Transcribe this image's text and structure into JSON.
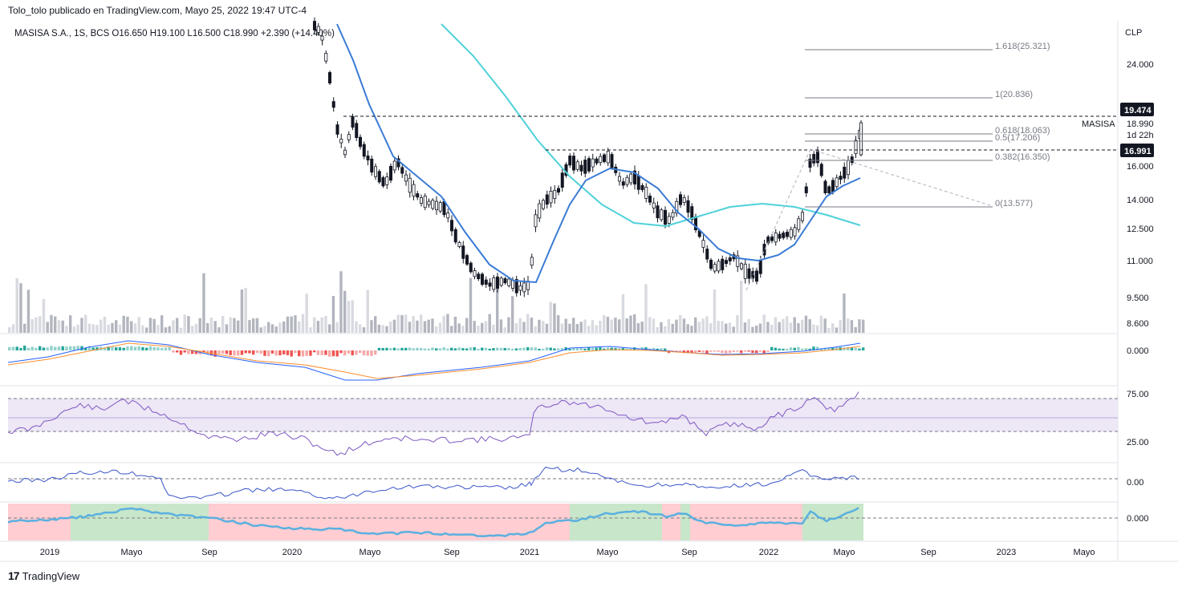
{
  "header": {
    "published": "Tolo_tolo publicado en TradingView.com, Mayo 25, 2022 19:47 UTC-4"
  },
  "symbol": {
    "line": "MASISA S.A., 1S, BCS  O16.650  H19.100  L16.500  C18.990  +2.390 (+14.40%)",
    "name_label": "MASISA",
    "currency": "CLP"
  },
  "price_axis": {
    "ticks": [
      "24.000",
      "16.000",
      "14.000",
      "12.500",
      "11.000",
      "9.500",
      "8.600"
    ],
    "badges": [
      {
        "value": "19.474",
        "color": "#131722"
      },
      {
        "value": "16.991",
        "color": "#131722"
      }
    ],
    "current": {
      "value": "18.990",
      "countdown": "1d 22h"
    }
  },
  "fib_levels": [
    {
      "label": "1.618(25.321)"
    },
    {
      "label": "1(20.836)"
    },
    {
      "label": "0.618(18.063)"
    },
    {
      "label": "0.5(17.206)"
    },
    {
      "label": "0.382(16.350)"
    },
    {
      "label": "0(13.577)"
    }
  ],
  "macd_axis": {
    "ticks": [
      "0.000"
    ]
  },
  "rsi_axis": {
    "ticks": [
      "75.00",
      "25.00"
    ]
  },
  "osc_axis": {
    "ticks": [
      "0.00"
    ]
  },
  "trend_axis": {
    "ticks": [
      "0.000"
    ]
  },
  "time_axis": {
    "ticks": [
      "2019",
      "Mayo",
      "Sep",
      "2020",
      "Mayo",
      "Sep",
      "2021",
      "Mayo",
      "Sep",
      "2022",
      "Mayo",
      "Sep",
      "2023",
      "Mayo"
    ]
  },
  "footer": {
    "brand": "TradingView"
  },
  "colors": {
    "ma_fast": "#3a7bd5",
    "ma_slow": "#4fd1d9",
    "rsi": "#7e57c2",
    "rsi_band": "#ede7f6",
    "osc": "#3a55c8",
    "trend_bull": "#c8e6c9",
    "trend_bear": "#ffcdd2",
    "trend_line": "#5ab0e0"
  }
}
